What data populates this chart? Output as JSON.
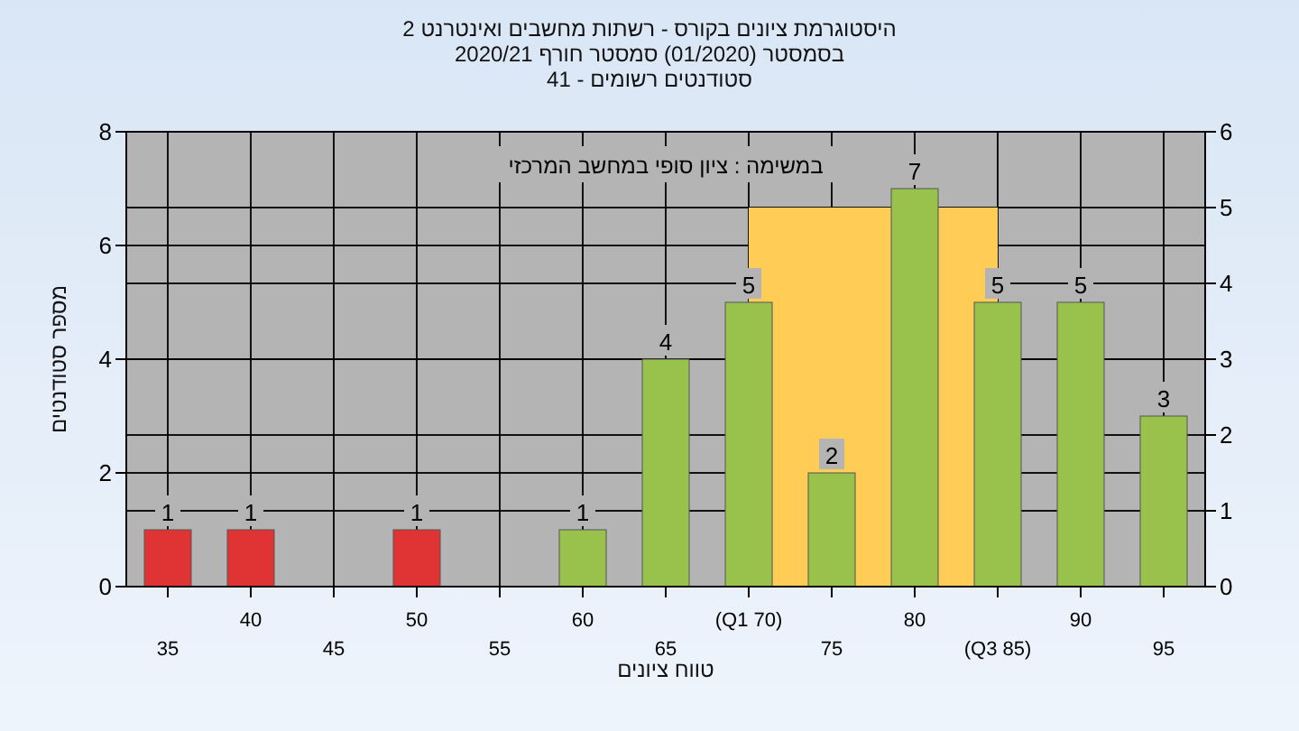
{
  "chart_data": {
    "type": "bar",
    "title": "היסטוגרמת ציונים בקורס - רשתות מחשבים ואינטרנט 2",
    "subtitle": "בסמסטר  (01/2020)  סמסטר חורף 2020/21",
    "annotations": [
      "סטודנטים רשומים - 41",
      "במשימה : ציון סופי במחשב המרכזי"
    ],
    "xlabel": "טווח ציונים",
    "ylabel": "מספר סטודנטים",
    "categories": [
      "35",
      "40",
      "45",
      "50",
      "55",
      "60",
      "65",
      "(Q1 70)",
      "75",
      "80",
      "(Q3 85)",
      "90",
      "95"
    ],
    "series": [
      {
        "type": "area",
        "axis": "y2",
        "color": "#ffcc55",
        "values": [
          null,
          null,
          null,
          null,
          null,
          null,
          null,
          5,
          5,
          null,
          5,
          null,
          null
        ]
      },
      {
        "colors": [
          "#e03434",
          "#e03434",
          "#e03434",
          "#e03434",
          "#99c24d",
          "#99c24d",
          "#99c24d",
          "#99c24d",
          "#99c24d",
          "#99c24d",
          "#99c24d",
          "#99c24d",
          "#99c24d"
        ],
        "values": [
          1,
          1,
          0,
          1,
          0,
          1,
          4,
          5,
          2,
          7,
          5,
          5,
          3
        ],
        "value_labels": [
          "1",
          "1",
          null,
          "1",
          null,
          "1",
          "4",
          "5",
          "2",
          "7",
          "5",
          "5",
          "3"
        ]
      }
    ],
    "ylim": [
      0,
      8
    ],
    "yticks": [
      0,
      2,
      4,
      6,
      8
    ],
    "y2lim": [
      0,
      6
    ],
    "y2ticks": [
      0,
      1,
      2,
      3,
      4,
      5,
      6
    ],
    "grid": true,
    "legend": false
  }
}
